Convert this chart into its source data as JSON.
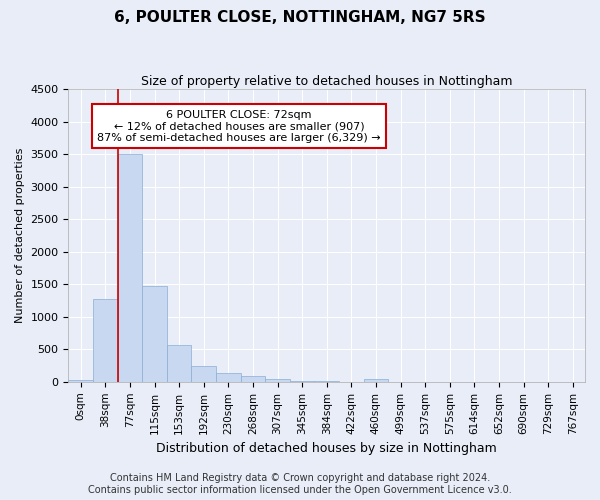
{
  "title": "6, POULTER CLOSE, NOTTINGHAM, NG7 5RS",
  "subtitle": "Size of property relative to detached houses in Nottingham",
  "xlabel": "Distribution of detached houses by size in Nottingham",
  "ylabel": "Number of detached properties",
  "footer_line1": "Contains HM Land Registry data © Crown copyright and database right 2024.",
  "footer_line2": "Contains public sector information licensed under the Open Government Licence v3.0.",
  "bin_labels": [
    "0sqm",
    "38sqm",
    "77sqm",
    "115sqm",
    "153sqm",
    "192sqm",
    "230sqm",
    "268sqm",
    "307sqm",
    "345sqm",
    "384sqm",
    "422sqm",
    "460sqm",
    "499sqm",
    "537sqm",
    "575sqm",
    "614sqm",
    "652sqm",
    "690sqm",
    "729sqm",
    "767sqm"
  ],
  "bar_values": [
    30,
    1280,
    3500,
    1480,
    570,
    240,
    140,
    90,
    50,
    20,
    5,
    0,
    50,
    0,
    0,
    0,
    0,
    0,
    0,
    0,
    0
  ],
  "bar_color": "#c8d8f0",
  "bar_edge_color": "#8aaed4",
  "ylim": [
    0,
    4500
  ],
  "yticks": [
    0,
    500,
    1000,
    1500,
    2000,
    2500,
    3000,
    3500,
    4000,
    4500
  ],
  "vline_x": 2,
  "vline_color": "#cc0000",
  "annotation_text": "6 POULTER CLOSE: 72sqm\n← 12% of detached houses are smaller (907)\n87% of semi-detached houses are larger (6,329) →",
  "annotation_box_facecolor": "#ffffff",
  "annotation_box_edgecolor": "#cc0000",
  "fig_bg_color": "#e8edf8",
  "plot_bg_color": "#e8edf8",
  "grid_color": "#ffffff",
  "title_fontsize": 11,
  "subtitle_fontsize": 9,
  "ylabel_fontsize": 8,
  "xlabel_fontsize": 9,
  "tick_fontsize": 8,
  "xtick_fontsize": 7.5,
  "footer_fontsize": 7
}
